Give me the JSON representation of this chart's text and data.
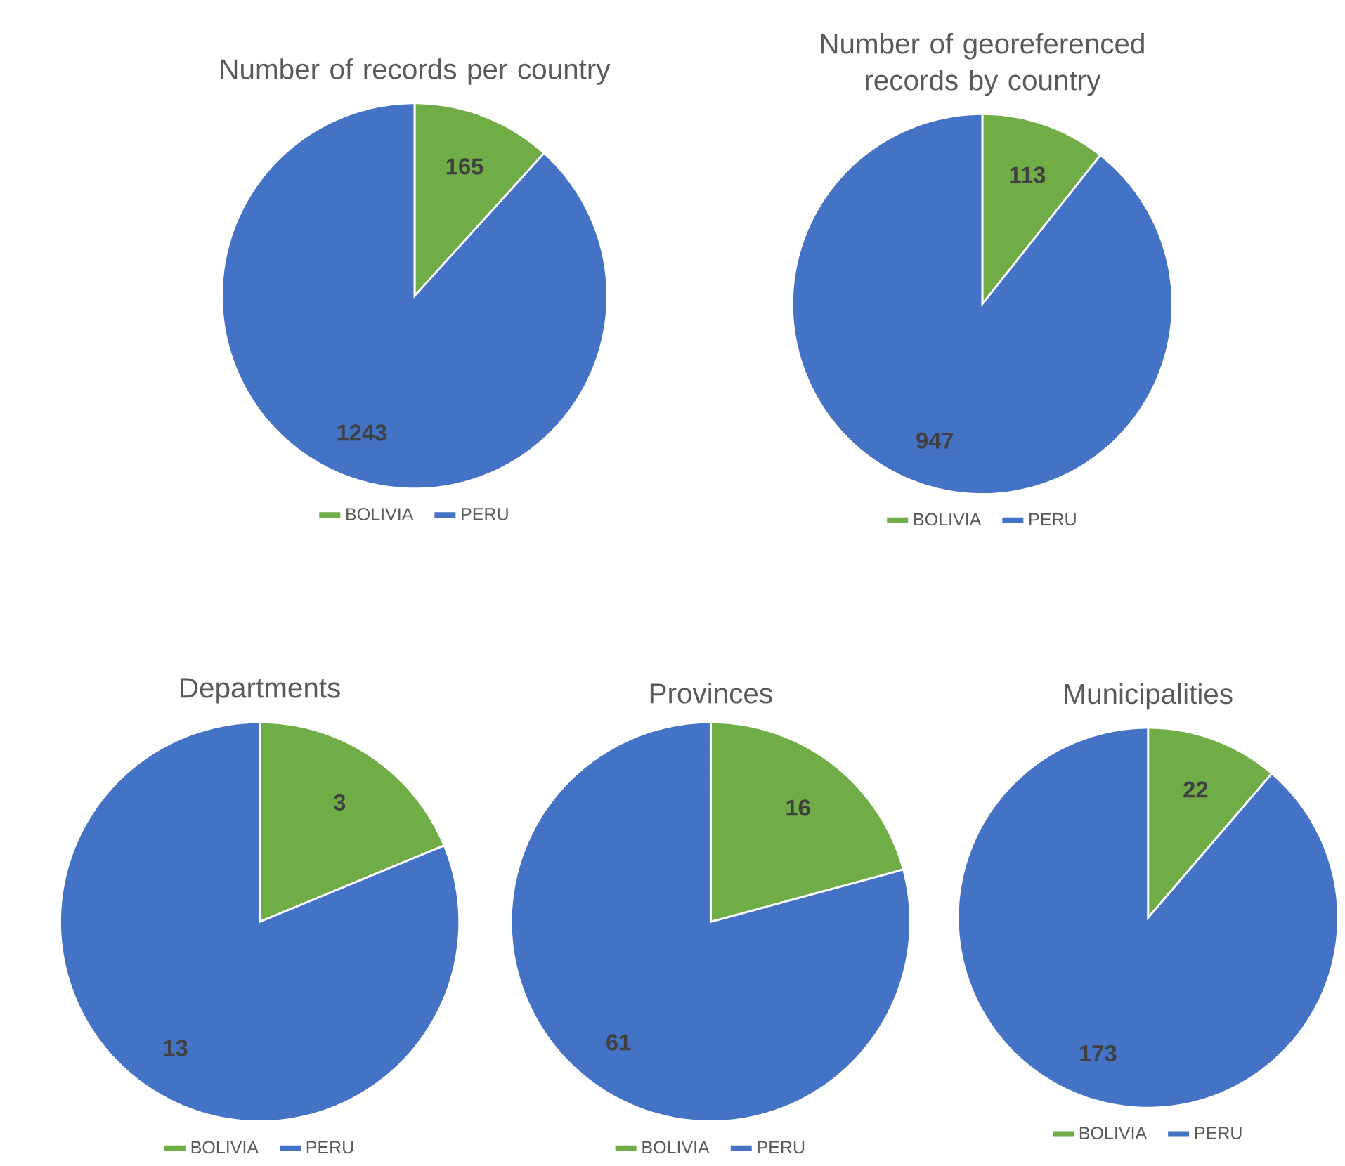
{
  "chart_data": [
    {
      "type": "pie",
      "title": "Number of records per country",
      "categories": [
        "BOLIVIA",
        "PERU"
      ],
      "values": [
        165,
        1243
      ],
      "colors": [
        "#70ad47",
        "#4472c4"
      ],
      "data_labels": true,
      "legend": "bottom"
    },
    {
      "type": "pie",
      "title": "Number of georeferenced records by country",
      "categories": [
        "BOLIVIA",
        "PERU"
      ],
      "values": [
        113,
        947
      ],
      "colors": [
        "#70ad47",
        "#4472c4"
      ],
      "data_labels": true,
      "legend": "bottom"
    },
    {
      "type": "pie",
      "title": "Departments",
      "categories": [
        "BOLIVIA",
        "PERU"
      ],
      "values": [
        3,
        13
      ],
      "colors": [
        "#70ad47",
        "#4472c4"
      ],
      "data_labels": true,
      "legend": "bottom"
    },
    {
      "type": "pie",
      "title": "Provinces",
      "categories": [
        "BOLIVIA",
        "PERU"
      ],
      "values": [
        16,
        61
      ],
      "colors": [
        "#70ad47",
        "#4472c4"
      ],
      "data_labels": true,
      "legend": "bottom"
    },
    {
      "type": "pie",
      "title": "Municipalities",
      "categories": [
        "BOLIVIA",
        "PERU"
      ],
      "values": [
        22,
        173
      ],
      "colors": [
        "#70ad47",
        "#4472c4"
      ],
      "data_labels": true,
      "legend": "bottom"
    }
  ]
}
